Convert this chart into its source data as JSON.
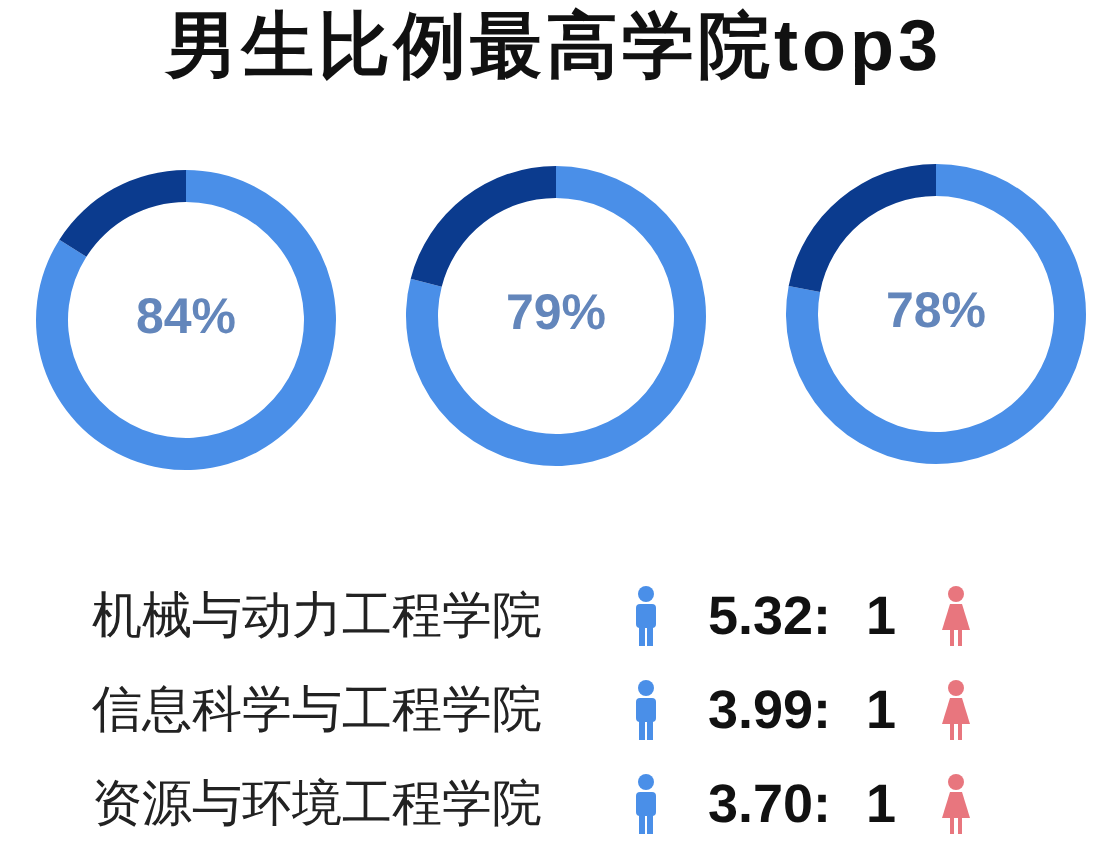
{
  "chart_data": [
    {
      "type": "donut",
      "title": "男生比例最高学院top3",
      "categories": [
        null,
        null
      ],
      "values": [
        84,
        16
      ],
      "colors": [
        "#4a8fe8",
        "#0b3b8e"
      ],
      "annotations": [
        "84%"
      ]
    },
    {
      "type": "donut",
      "categories": [
        null,
        null
      ],
      "values": [
        79,
        21
      ],
      "colors": [
        "#4a8fe8",
        "#0b3b8e"
      ],
      "annotations": [
        "79%"
      ]
    },
    {
      "type": "donut",
      "categories": [
        null,
        null
      ],
      "values": [
        78,
        22
      ],
      "colors": [
        "#4a8fe8",
        "#0b3b8e"
      ],
      "annotations": [
        "78%"
      ]
    },
    {
      "type": "other",
      "categories": [
        "机械与动力工程学院",
        "信息科学与工程学院",
        "资源与环境工程学院"
      ],
      "value_labels": [
        "5.32: 1",
        "3.99: 1",
        "3.70: 1"
      ]
    }
  ]
}
